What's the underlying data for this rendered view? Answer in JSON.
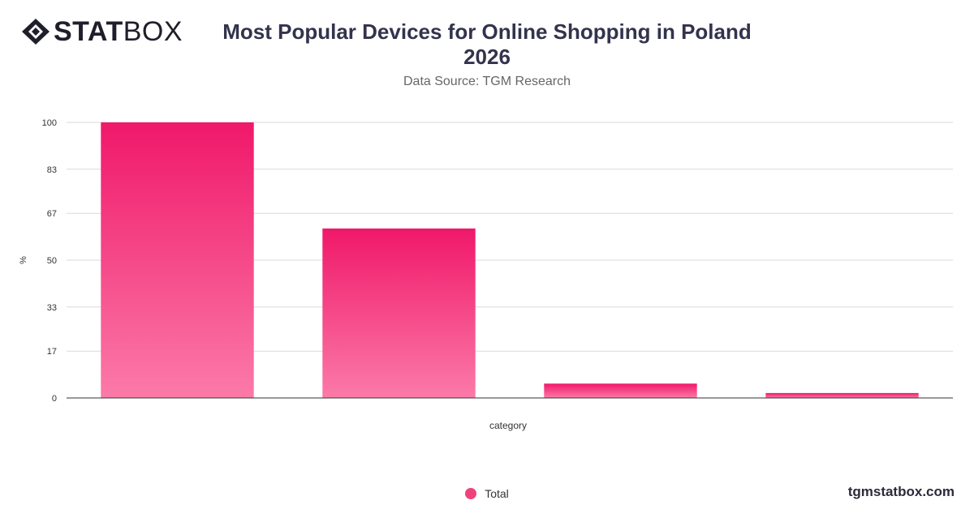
{
  "header": {
    "logo_bold": "STAT",
    "logo_light": "BOX",
    "title_line1": "Most Popular Devices for Online Shopping in Poland",
    "title_line2": "2026",
    "subtitle": "Data Source: TGM Research"
  },
  "footer": {
    "brand": "tgmstatbox.com"
  },
  "colors": {
    "bar_top": "#f0186a",
    "bar_bottom": "#fb7aa8",
    "grid": "#d9d9d9",
    "axis": "#333333"
  },
  "chart_data": {
    "type": "bar",
    "categories": [
      "",
      "",
      "",
      ""
    ],
    "series": [
      {
        "name": "Total",
        "values": [
          100,
          61.5,
          5.2,
          1.8
        ]
      }
    ],
    "title": "Most Popular Devices for Online Shopping in Poland 2026",
    "subtitle": "Data Source: TGM Research",
    "xlabel": "category",
    "ylabel": "%",
    "ylim": [
      0,
      100
    ],
    "yticks": [
      0,
      17,
      33,
      50,
      67,
      83,
      100
    ],
    "grid": true,
    "legend": "bottom-center"
  }
}
